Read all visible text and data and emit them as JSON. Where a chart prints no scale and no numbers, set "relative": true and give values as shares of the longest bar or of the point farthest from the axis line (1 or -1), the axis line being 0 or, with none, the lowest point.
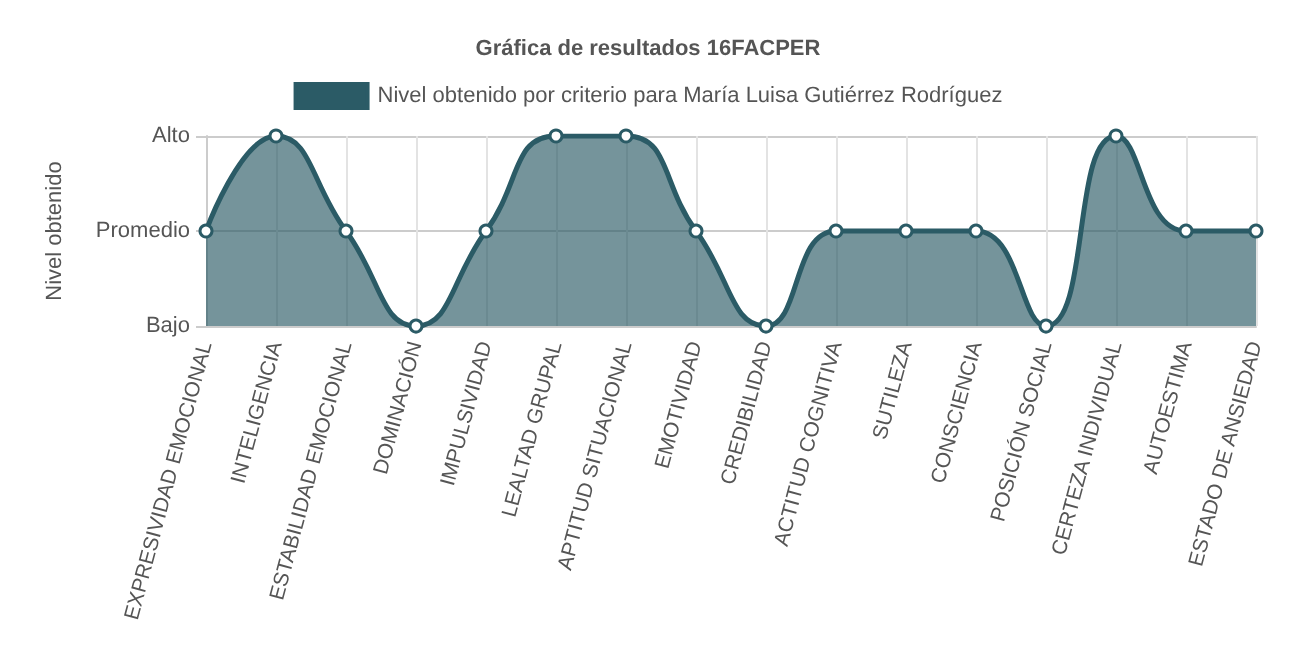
{
  "chart_data": {
    "type": "area",
    "title": "Gráfica de resultados 16FACPER",
    "ylabel": "Nivel obtenido",
    "relative": true,
    "categories": [
      "EXPRESIVIDAD EMOCIONAL",
      "INTELIGENCIA",
      "ESTABILIDAD EMOCIONAL",
      "DOMINACIÓN",
      "IMPULSIVIDAD",
      "LEALTAD GRUPAL",
      "APTITUD SITUACIONAL",
      "EMOTIVIDAD",
      "CREDIBILIDAD",
      "ACTITUD COGNITIVA",
      "SUTILEZA",
      "CONSCIENCIA",
      "POSICIÓN SOCIAL",
      "CERTEZA INDIVIDUAL",
      "AUTOESTIMA",
      "ESTADO DE ANSIEDAD"
    ],
    "series": [
      {
        "name": "Nivel obtenido por criterio para María Luisa Gutiérrez Rodríguez",
        "color": "#2b5b66",
        "values": [
          0.5,
          1,
          0.5,
          0,
          0.5,
          1,
          1,
          0.5,
          0,
          0.5,
          0.5,
          0.5,
          0,
          1,
          0.5,
          0.5
        ]
      }
    ],
    "annotations": [
      "Bajo",
      "Promedio",
      "Alto"
    ],
    "grid": true,
    "legend": "top",
    "marker": "circle",
    "line_style": "solid"
  }
}
